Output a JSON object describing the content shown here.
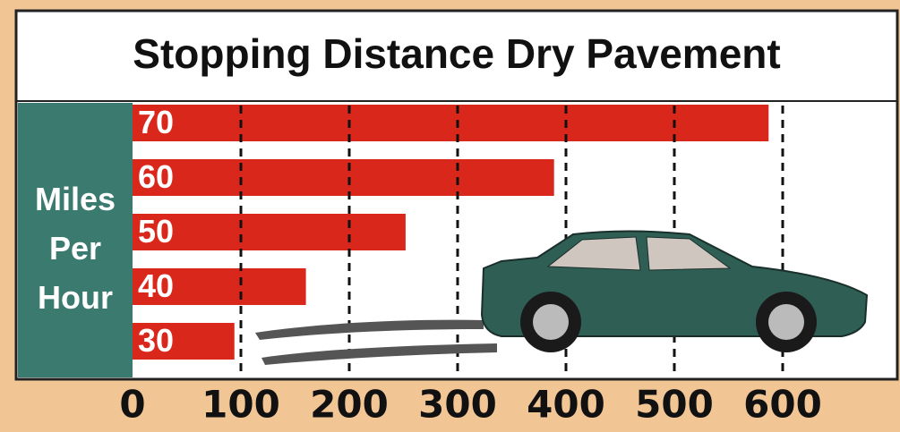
{
  "chart_data": {
    "type": "hbar",
    "title": "Stopping Distance Dry Pavement",
    "y_label": "Miles Per Hour",
    "categories": [
      "70",
      "60",
      "50",
      "40",
      "30"
    ],
    "values": [
      587,
      389,
      252,
      160,
      94
    ],
    "color": "#d9271c",
    "xlim": [
      0,
      700
    ],
    "xticks": [
      0,
      100,
      200,
      300,
      400,
      500,
      600
    ],
    "grid": true
  }
}
